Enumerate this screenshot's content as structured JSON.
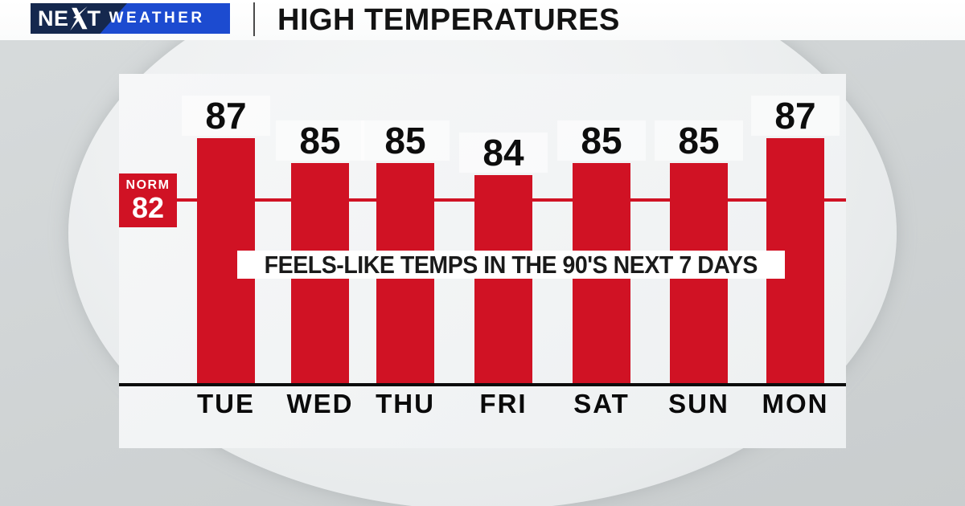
{
  "header": {
    "logo": {
      "next_pre": "NE",
      "next_post": "T",
      "weather": "WEATHER"
    },
    "title": "HIGH TEMPERATURES"
  },
  "chart_data": {
    "type": "bar",
    "title": "HIGH TEMPERATURES",
    "categories": [
      "TUE",
      "WED",
      "THU",
      "FRI",
      "SAT",
      "SUN",
      "MON"
    ],
    "values": [
      87,
      85,
      85,
      84,
      85,
      85,
      87
    ],
    "norm_label": "NORM",
    "norm_value": 82,
    "annotation": "FEELS-LIKE TEMPS IN THE 90'S NEXT 7 DAYS",
    "xlabel": "",
    "ylabel": "",
    "ylim": [
      67,
      92
    ],
    "grid": false,
    "legend": "none",
    "bar_color": "#d01224",
    "norm_color": "#d01224",
    "axis_color": "#0c0c0c"
  },
  "colors": {
    "logo_blue": "#1c4bd0",
    "logo_navy": "#15284e",
    "header_bg": "#ffffff",
    "panel_bg": "#f2f4f5",
    "page_bg": "#d0d4d5"
  }
}
